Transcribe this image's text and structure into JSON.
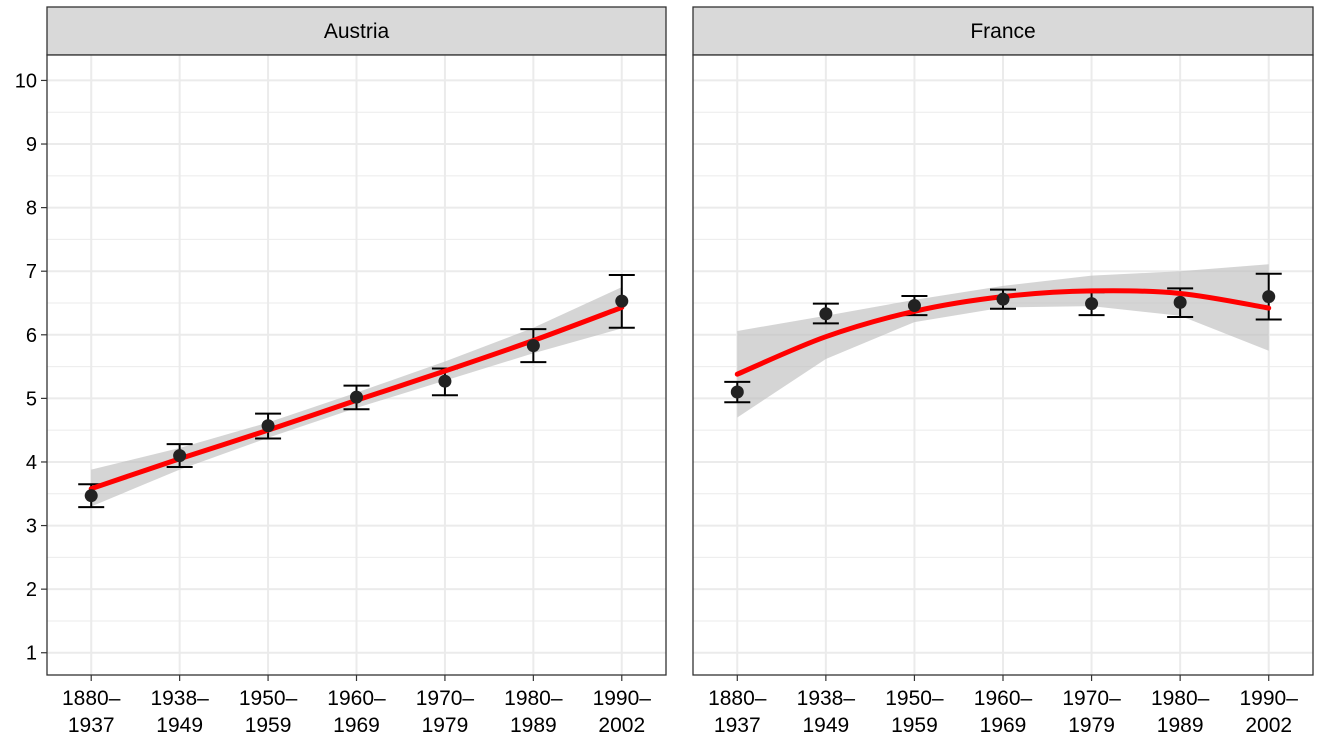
{
  "chart_data": {
    "type": "line",
    "title": "",
    "xlabel": "",
    "ylabel": "",
    "ylim": [
      0.65,
      10.4
    ],
    "y_ticks": [
      "1",
      "2",
      "3",
      "4",
      "5",
      "6",
      "7",
      "8",
      "9",
      "10"
    ],
    "x_categories": [
      [
        "1880–",
        "1937"
      ],
      [
        "1938–",
        "1949"
      ],
      [
        "1950–",
        "1959"
      ],
      [
        "1960–",
        "1969"
      ],
      [
        "1970–",
        "1979"
      ],
      [
        "1980–",
        "1989"
      ],
      [
        "1990–",
        "2002"
      ]
    ],
    "grid": true,
    "colors": {
      "fit_line": "#ff0000",
      "ribbon": "#bebebe",
      "points": "#222222",
      "strip_bg": "#d9d9d9",
      "grid": "#ebebeb",
      "panel_border": "#333333"
    },
    "panels": [
      {
        "label": "Austria",
        "points": [
          3.47,
          4.1,
          4.57,
          5.02,
          5.27,
          5.83,
          6.53
        ],
        "ci_low": [
          3.29,
          3.92,
          4.37,
          4.83,
          5.05,
          5.57,
          6.11
        ],
        "ci_high": [
          3.65,
          4.28,
          4.76,
          5.2,
          5.47,
          6.09,
          6.94
        ],
        "fit": [
          3.58,
          4.05,
          4.5,
          4.97,
          5.43,
          5.91,
          6.43
        ],
        "ribbon_low": [
          3.3,
          3.88,
          4.38,
          4.85,
          5.28,
          5.71,
          6.1
        ],
        "ribbon_high": [
          3.88,
          4.22,
          4.62,
          5.09,
          5.58,
          6.11,
          6.75
        ]
      },
      {
        "label": "France",
        "points": [
          5.1,
          6.33,
          6.46,
          6.56,
          6.49,
          6.51,
          6.6
        ],
        "ci_low": [
          4.94,
          6.18,
          6.31,
          6.41,
          6.31,
          6.28,
          6.24
        ],
        "ci_high": [
          5.26,
          6.49,
          6.61,
          6.71,
          6.67,
          6.73,
          6.96
        ],
        "fit": [
          5.38,
          5.97,
          6.37,
          6.6,
          6.69,
          6.65,
          6.42
        ],
        "ribbon_low": [
          4.7,
          5.62,
          6.2,
          6.43,
          6.45,
          6.3,
          5.75
        ],
        "ribbon_high": [
          6.06,
          6.3,
          6.55,
          6.77,
          6.93,
          7.0,
          7.11
        ]
      }
    ]
  }
}
